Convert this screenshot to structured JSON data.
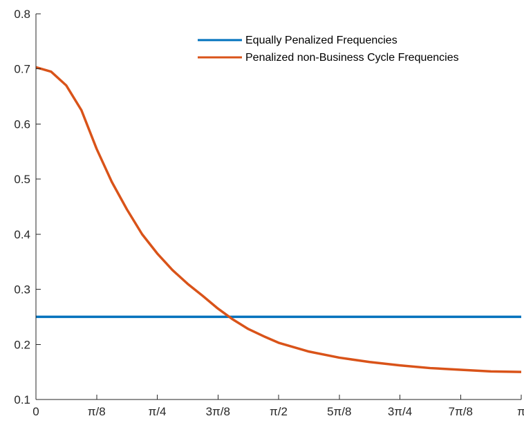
{
  "chart_data": {
    "type": "line",
    "title": "",
    "xlabel": "",
    "ylabel": "",
    "xlim": [
      0,
      3.14159265
    ],
    "ylim": [
      0.1,
      0.8
    ],
    "grid": false,
    "legend_position": "top-right",
    "x_ticks": [
      {
        "value": 0,
        "label": "0"
      },
      {
        "value": 0.39269908,
        "label": "π/8"
      },
      {
        "value": 0.78539816,
        "label": "π/4"
      },
      {
        "value": 1.17809725,
        "label": "3π/8"
      },
      {
        "value": 1.57079633,
        "label": "π/2"
      },
      {
        "value": 1.96349541,
        "label": "5π/8"
      },
      {
        "value": 2.35619449,
        "label": "3π/4"
      },
      {
        "value": 2.74889357,
        "label": "7π/8"
      },
      {
        "value": 3.14159265,
        "label": "π"
      }
    ],
    "y_ticks": [
      {
        "value": 0.1,
        "label": "0.1"
      },
      {
        "value": 0.2,
        "label": "0.2"
      },
      {
        "value": 0.3,
        "label": "0.3"
      },
      {
        "value": 0.4,
        "label": "0.4"
      },
      {
        "value": 0.5,
        "label": "0.5"
      },
      {
        "value": 0.6,
        "label": "0.6"
      },
      {
        "value": 0.7,
        "label": "0.7"
      },
      {
        "value": 0.8,
        "label": "0.8"
      }
    ],
    "series": [
      {
        "name": "Equally Penalized Frequencies",
        "color": "#0072BD",
        "x": [
          0,
          0.39269908,
          0.78539816,
          1.17809725,
          1.57079633,
          1.96349541,
          2.35619449,
          2.74889357,
          3.14159265
        ],
        "y": [
          0.25,
          0.25,
          0.25,
          0.25,
          0.25,
          0.25,
          0.25,
          0.25,
          0.25
        ]
      },
      {
        "name": "Penalized non-Business Cycle Frequencies",
        "color": "#D95319",
        "x": [
          0,
          0.0982,
          0.1963,
          0.2945,
          0.3927,
          0.4909,
          0.589,
          0.6872,
          0.7854,
          0.8836,
          0.9817,
          1.0799,
          1.1781,
          1.2763,
          1.3744,
          1.4726,
          1.5708,
          1.7671,
          1.9635,
          2.1598,
          2.3562,
          2.5525,
          2.7489,
          2.9452,
          3.1416
        ],
        "y": [
          0.703,
          0.695,
          0.67,
          0.625,
          0.555,
          0.495,
          0.445,
          0.4,
          0.365,
          0.335,
          0.31,
          0.288,
          0.265,
          0.245,
          0.228,
          0.215,
          0.203,
          0.187,
          0.176,
          0.168,
          0.162,
          0.157,
          0.154,
          0.151,
          0.15
        ]
      }
    ]
  }
}
